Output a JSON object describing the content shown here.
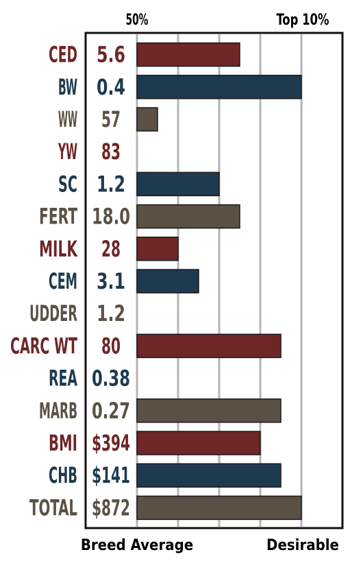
{
  "header": {
    "left_label": "50%",
    "right_label": "Top 10%"
  },
  "footer": {
    "left_label": "Breed Average",
    "right_label": "Desirable"
  },
  "colors": {
    "red": "#6e2626",
    "blue": "#1e3a4f",
    "taupe": "#5a5144",
    "grid": "#b5b5b8",
    "frame": "#111111"
  },
  "chart_data": {
    "type": "bar",
    "orientation": "horizontal",
    "grid": true,
    "xlim": [
      0,
      5
    ],
    "x_meaning": "gridline steps from breed average (0) toward desirable",
    "categories": [
      "CED",
      "BW",
      "WW",
      "YW",
      "SC",
      "FERT",
      "MILK",
      "CEM",
      "UDDER",
      "CARC WT",
      "REA",
      "MARB",
      "BMI",
      "CHB",
      "TOTAL"
    ],
    "value_labels": [
      "5.6",
      "0.4",
      "57",
      "83",
      "1.2",
      "18.0",
      "28",
      "3.1",
      "1.2",
      "80",
      "0.38",
      "0.27",
      "$394",
      "$141",
      "$872"
    ],
    "values": [
      2.5,
      4,
      0.5,
      0,
      2,
      2.5,
      1,
      1.5,
      0,
      3.5,
      0,
      3.5,
      3,
      3.5,
      4
    ],
    "color_keys": [
      "red",
      "blue",
      "taupe",
      "red",
      "blue",
      "taupe",
      "red",
      "blue",
      "taupe",
      "red",
      "blue",
      "taupe",
      "red",
      "blue",
      "taupe"
    ]
  }
}
